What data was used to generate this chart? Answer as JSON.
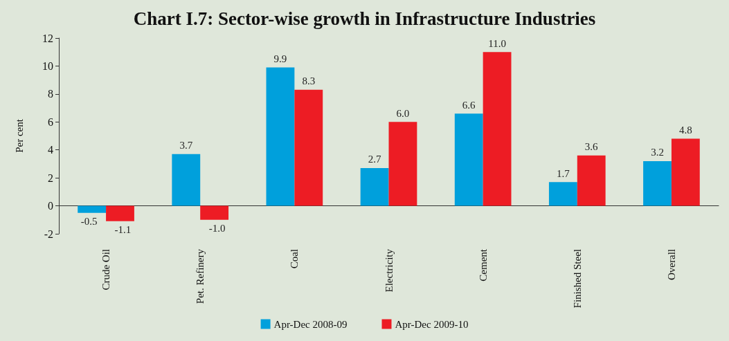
{
  "chart_data": {
    "type": "bar",
    "title": "Chart I.7: Sector-wise growth in Infrastructure Industries",
    "ylabel": "Per cent",
    "categories": [
      "Crude Oil",
      "Pet. Refinery",
      "Coal",
      "Electricity",
      "Cement",
      "Finished Steel",
      "Overall"
    ],
    "series": [
      {
        "name": "Apr-Dec 2008-09",
        "color": "#00a0dc",
        "values": [
          -0.5,
          3.7,
          9.9,
          2.7,
          6.6,
          1.7,
          3.2
        ],
        "value_labels": [
          "-0.5",
          "3.7",
          "9.9",
          "2.7",
          "6.6",
          "1.7",
          "3.2"
        ]
      },
      {
        "name": "Apr-Dec 2009-10",
        "color": "#ed1c24",
        "values": [
          -1.1,
          -1.0,
          8.3,
          6.0,
          11.0,
          3.6,
          4.8
        ],
        "value_labels": [
          "-1.1",
          "-1.0",
          "8.3",
          "6.0",
          "11.0",
          "3.6",
          "4.8"
        ]
      }
    ],
    "ylim": [
      -2,
      12
    ],
    "yticks": [
      -2,
      0,
      2,
      4,
      6,
      8,
      10,
      12
    ],
    "legend": "bottom"
  }
}
